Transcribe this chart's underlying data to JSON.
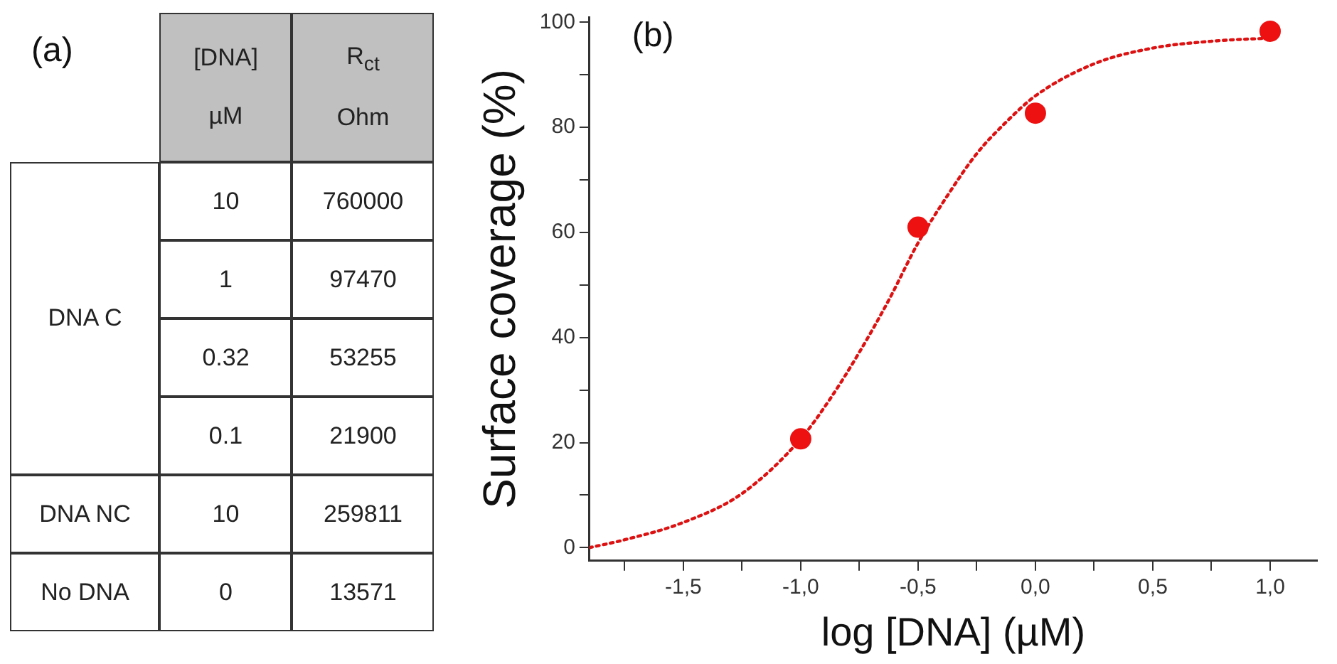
{
  "chart_data": [
    {
      "type": "other",
      "title": "(a)",
      "annotations": [
        "[DNA]\nµM",
        "R$_{ct}$\nOhm",
        "DNA C",
        "10",
        "760000",
        "1",
        "97470",
        "0.32",
        "53255",
        "0.1",
        "21900",
        "DNA NC",
        "10",
        "259811",
        "No DNA",
        "0",
        "13571"
      ]
    },
    {
      "type": "scatter",
      "annotations": [
        "(b)"
      ],
      "xlabel": "log [DNA] (µM)",
      "ylabel": "Surface coverage (%)",
      "xlim": [
        -1.9,
        1.2
      ],
      "ylim": [
        -2.5,
        101
      ],
      "xticks": [
        {
          "value": -1.75,
          "label": null
        },
        {
          "value": -1.5,
          "label": "-1,5"
        },
        {
          "value": -1.25,
          "label": null
        },
        {
          "value": -1,
          "label": "-1,0"
        },
        {
          "value": -0.75,
          "label": null
        },
        {
          "value": -0.5,
          "label": "-0,5"
        },
        {
          "value": -0.25,
          "label": null
        },
        {
          "value": 0,
          "label": "0,0"
        },
        {
          "value": 0.25,
          "label": null
        },
        {
          "value": 0.5,
          "label": "0,5"
        },
        {
          "value": 0.75,
          "label": null
        },
        {
          "value": 1,
          "label": "1,0"
        }
      ],
      "yticks": [
        0,
        {
          "value": 10,
          "label": null
        },
        20,
        {
          "value": 30,
          "label": null
        },
        40,
        {
          "value": 50,
          "label": null
        },
        60,
        {
          "value": 70,
          "label": null
        },
        80,
        {
          "value": 90,
          "label": null
        },
        100
      ],
      "grid": false,
      "legend": false,
      "marker": "circle",
      "series": [
        {
          "type": "scatter",
          "color": "#ee1111",
          "x": [
            -1,
            -0.5,
            0,
            1
          ],
          "values": [
            20.7,
            61,
            82.7,
            98.3
          ]
        },
        {
          "type": "line",
          "line_style": "dotted",
          "marker": "none",
          "color": "#dd1111",
          "x": [
            -1.9,
            -1.75,
            -1.5,
            -1.25,
            -1,
            -0.875,
            -0.75,
            -0.625,
            -0.5,
            -0.375,
            -0.25,
            -0.125,
            0,
            0.25,
            0.5,
            0.75,
            1
          ],
          "values": [
            0,
            1.5,
            4.8,
            10.3,
            20.7,
            28.3,
            37.2,
            47.1,
            58,
            67,
            75,
            81,
            86,
            92.1,
            95.1,
            96.4,
            97
          ]
        }
      ]
    }
  ]
}
